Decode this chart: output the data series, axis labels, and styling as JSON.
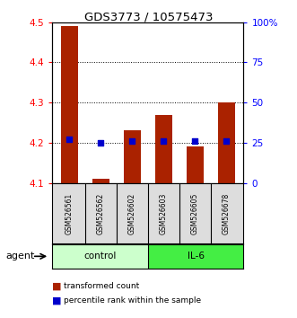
{
  "title": "GDS3773 / 10575473",
  "samples": [
    "GSM526561",
    "GSM526562",
    "GSM526602",
    "GSM526603",
    "GSM526605",
    "GSM526678"
  ],
  "transformed_counts": [
    4.49,
    4.11,
    4.23,
    4.27,
    4.19,
    4.3
  ],
  "percentile_ranks": [
    27,
    25,
    26,
    26,
    26,
    26
  ],
  "bar_bottom": 4.1,
  "ylim": [
    4.1,
    4.5
  ],
  "yticks": [
    4.1,
    4.2,
    4.3,
    4.4,
    4.5
  ],
  "right_yticks": [
    0,
    25,
    50,
    75,
    100
  ],
  "right_ylabels": [
    "0",
    "25",
    "50",
    "75",
    "100%"
  ],
  "bar_color": "#aa2200",
  "percentile_color": "#0000cc",
  "control_color": "#ccffcc",
  "il6_color": "#44ee44",
  "group_label_control": "control",
  "group_label_il6": "IL-6",
  "agent_label": "agent",
  "legend_items": [
    "transformed count",
    "percentile rank within the sample"
  ],
  "bar_width": 0.55,
  "bg_color": "#ffffff"
}
